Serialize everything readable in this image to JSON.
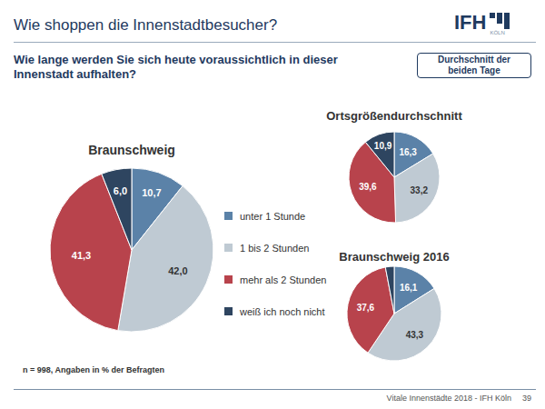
{
  "page": {
    "title": "Wie shoppen die Innenstadtbesucher?",
    "logo": "IFH",
    "logo_sub": "KÖLN",
    "question": "Wie lange werden Sie sich heute voraussichtlich in dieser Innenstadt aufhalten?",
    "badge": "Durchschnitt der beiden Tage",
    "note": "n = 998, Angaben in % der Befragten",
    "footer": "Vitale Innenstädte 2018 - IFH Köln",
    "page_number": "39"
  },
  "chart_data": [
    {
      "type": "pie",
      "title": "Braunschweig",
      "categories": [
        "unter 1 Stunde",
        "1 bis 2 Stunden",
        "mehr als 2 Stunden",
        "weiß ich noch nicht"
      ],
      "values": [
        10.7,
        42.0,
        41.3,
        6.0
      ],
      "value_labels": [
        "10,7",
        "42,0",
        "41,3",
        "6,0"
      ],
      "colors": [
        "#5b82a8",
        "#bfcad3",
        "#b8434c",
        "#2e4560"
      ],
      "data_labels": true,
      "legend": "right"
    },
    {
      "type": "pie",
      "title": "Ortsgrößendurchschnitt",
      "categories": [
        "unter 1 Stunde",
        "1 bis 2 Stunden",
        "mehr als 2 Stunden",
        "weiß ich noch nicht"
      ],
      "values": [
        16.3,
        33.2,
        39.6,
        10.9
      ],
      "value_labels": [
        "16,3",
        "33,2",
        "39,6",
        "10,9"
      ],
      "colors": [
        "#5b82a8",
        "#bfcad3",
        "#b8434c",
        "#2e4560"
      ],
      "data_labels": true
    },
    {
      "type": "pie",
      "title": "Braunschweig 2016",
      "categories": [
        "unter 1 Stunde",
        "1 bis 2 Stunden",
        "mehr als 2 Stunden",
        "weiß ich noch nicht"
      ],
      "values": [
        16.1,
        43.3,
        37.6,
        3.0
      ],
      "value_labels": [
        "16,1",
        "43,3",
        "37,6",
        null
      ],
      "colors": [
        "#5b82a8",
        "#bfcad3",
        "#b8434c",
        "#2e4560"
      ],
      "data_labels": true
    }
  ]
}
